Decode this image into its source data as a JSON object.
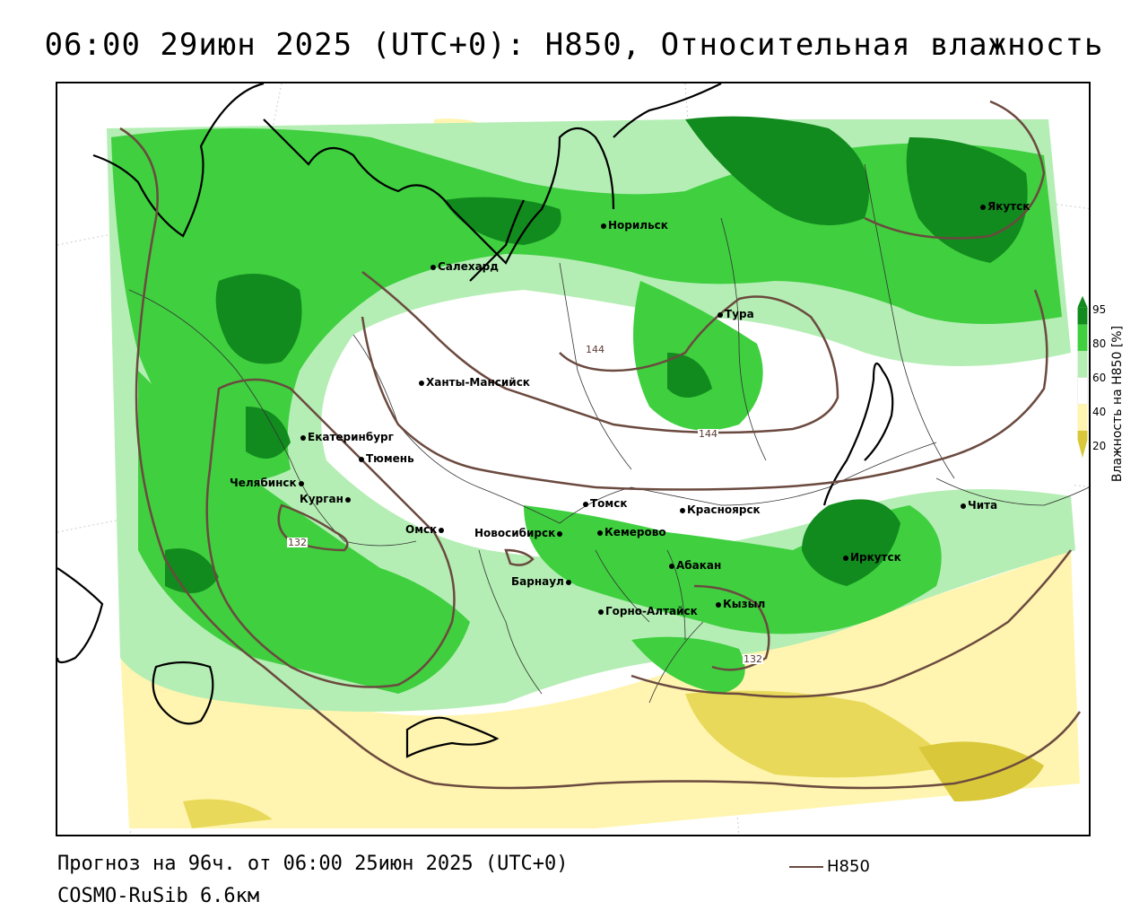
{
  "title": "06:00 29июн 2025 (UTC+0): H850, Относительная влажность",
  "footer": {
    "forecast": "Прогноз на 96ч. от 06:00 25июн 2025 (UTC+0)",
    "model": "COSMO-RuSib 6.6км",
    "h850_label": "H850"
  },
  "legend": {
    "title": "Влажность на H850 [%]",
    "ticks": [
      "95",
      "80",
      "60",
      "40",
      "20"
    ],
    "colors": {
      "very_humid": "#118a1e",
      "humid": "#3fcf3f",
      "moist": "#b4eeb4",
      "neutral": "#ffffff",
      "dry": "#fff5b0",
      "very_dry": "#d8c83a"
    }
  },
  "contour_labels": [
    "144",
    "144",
    "132",
    "132"
  ],
  "cities": [
    "Норильск",
    "Якутск",
    "Салехард",
    "Тура",
    "Ханты-Мансийск",
    "Екатеринбург",
    "Тюмень",
    "Челябинск",
    "Курган",
    "Омск",
    "Новосибирск",
    "Томск",
    "Кемерово",
    "Красноярск",
    "Барнаул",
    "Абакан",
    "Горно-Алтайск",
    "Кызыл",
    "Иркутск",
    "Чита"
  ],
  "colors": {
    "contour": "#6b4a3f",
    "coast": "#000000",
    "border": "#222222"
  }
}
